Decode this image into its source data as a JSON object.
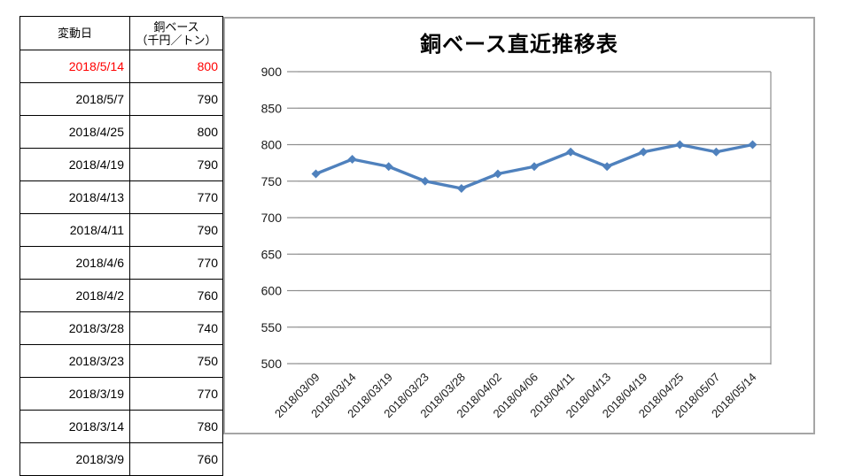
{
  "table": {
    "header": {
      "date": "変動日",
      "price_line1": "銅ベース",
      "price_line2": "（千円／トン）"
    },
    "rows": [
      {
        "date": "2018/5/14",
        "value": "800",
        "highlight": true
      },
      {
        "date": "2018/5/7",
        "value": "790",
        "highlight": false
      },
      {
        "date": "2018/4/25",
        "value": "800",
        "highlight": false
      },
      {
        "date": "2018/4/19",
        "value": "790",
        "highlight": false
      },
      {
        "date": "2018/4/13",
        "value": "770",
        "highlight": false
      },
      {
        "date": "2018/4/11",
        "value": "790",
        "highlight": false
      },
      {
        "date": "2018/4/6",
        "value": "770",
        "highlight": false
      },
      {
        "date": "2018/4/2",
        "value": "760",
        "highlight": false
      },
      {
        "date": "2018/3/28",
        "value": "740",
        "highlight": false
      },
      {
        "date": "2018/3/23",
        "value": "750",
        "highlight": false
      },
      {
        "date": "2018/3/19",
        "value": "770",
        "highlight": false
      },
      {
        "date": "2018/3/14",
        "value": "780",
        "highlight": false
      },
      {
        "date": "2018/3/9",
        "value": "760",
        "highlight": false
      }
    ],
    "highlight_color": "#ff0000",
    "text_color": "#000000"
  },
  "chart_data": {
    "type": "line",
    "title": "銅ベース直近推移表",
    "categories": [
      "2018/03/09",
      "2018/03/14",
      "2018/03/19",
      "2018/03/23",
      "2018/03/28",
      "2018/04/02",
      "2018/04/06",
      "2018/04/11",
      "2018/04/13",
      "2018/04/19",
      "2018/04/25",
      "2018/05/07",
      "2018/05/14"
    ],
    "values": [
      760,
      780,
      770,
      750,
      740,
      760,
      770,
      790,
      770,
      790,
      800,
      790,
      800
    ],
    "xlabel": "",
    "ylabel": "",
    "ylim": [
      500,
      900
    ],
    "ytick_step": 50,
    "grid": true,
    "legend": "none",
    "marker": "diamond",
    "line_color": "#4f81bd",
    "gridline_color": "#8e8e8e",
    "axis_text_color": "#1a1a1a",
    "frame_border_color": "#a6a6a6"
  }
}
